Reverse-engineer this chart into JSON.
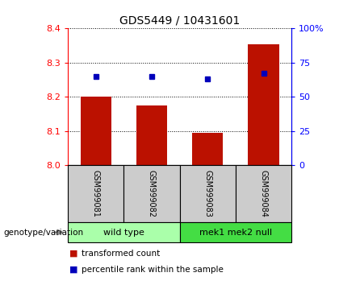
{
  "title": "GDS5449 / 10431601",
  "samples": [
    "GSM999081",
    "GSM999082",
    "GSM999083",
    "GSM999084"
  ],
  "transformed_counts": [
    8.202,
    8.175,
    8.095,
    8.353
  ],
  "percentile_ranks": [
    65,
    65,
    63,
    67
  ],
  "ylim_left": [
    8.0,
    8.4
  ],
  "ylim_right": [
    0,
    100
  ],
  "yticks_left": [
    8.0,
    8.1,
    8.2,
    8.3,
    8.4
  ],
  "yticks_right": [
    0,
    25,
    50,
    75,
    100
  ],
  "bar_color": "#bb1100",
  "dot_color": "#0000bb",
  "bar_width": 0.55,
  "groups": [
    {
      "label": "wild type",
      "indices": [
        0,
        1
      ],
      "color": "#aaffaa"
    },
    {
      "label": "mek1 mek2 null",
      "indices": [
        2,
        3
      ],
      "color": "#44dd44"
    }
  ],
  "group_label_prefix": "genotype/variation",
  "legend_bar_label": "transformed count",
  "legend_dot_label": "percentile rank within the sample",
  "label_box_color": "#cccccc",
  "background_color": "#ffffff"
}
